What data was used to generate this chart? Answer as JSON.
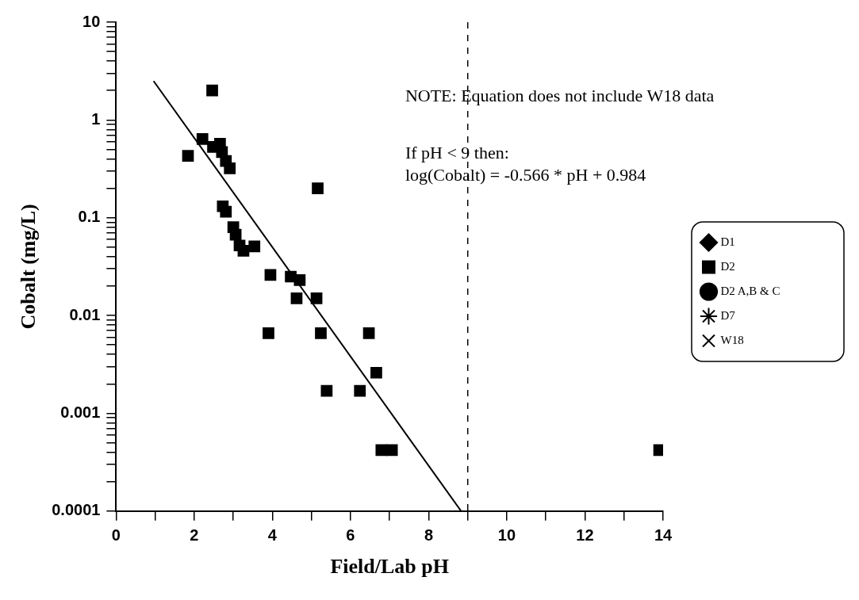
{
  "chart_data": {
    "type": "scatter",
    "xlabel": "Field/Lab pH",
    "ylabel": "Cobalt (mg/L)",
    "log": "y",
    "grid": false,
    "legend": "right",
    "xlim": [
      0,
      14
    ],
    "xticks": [
      0,
      {
        "value": 1,
        "label": null
      },
      2,
      {
        "value": 3,
        "label": null
      },
      4,
      {
        "value": 5,
        "label": null
      },
      6,
      {
        "value": 7,
        "label": null
      },
      8,
      {
        "value": 9,
        "label": null
      },
      10,
      {
        "value": 11,
        "label": null
      },
      12,
      {
        "value": 13,
        "label": null
      },
      14
    ],
    "ylim": [
      0.0001,
      10
    ],
    "yticks": [
      0.0001,
      {
        "value": 0.0002,
        "label": null
      },
      {
        "value": 0.0003,
        "label": null
      },
      {
        "value": 0.0004,
        "label": null
      },
      {
        "value": 0.0005,
        "label": null
      },
      {
        "value": 0.0006,
        "label": null
      },
      {
        "value": 0.0007,
        "label": null
      },
      {
        "value": 0.0008,
        "label": null
      },
      {
        "value": 0.0009,
        "label": null
      },
      0.001,
      {
        "value": 0.002,
        "label": null
      },
      {
        "value": 0.003,
        "label": null
      },
      {
        "value": 0.004,
        "label": null
      },
      {
        "value": 0.005,
        "label": null
      },
      {
        "value": 0.006,
        "label": null
      },
      {
        "value": 0.007,
        "label": null
      },
      {
        "value": 0.008,
        "label": null
      },
      {
        "value": 0.009,
        "label": null
      },
      0.01,
      {
        "value": 0.02,
        "label": null
      },
      {
        "value": 0.03,
        "label": null
      },
      {
        "value": 0.04,
        "label": null
      },
      {
        "value": 0.05,
        "label": null
      },
      {
        "value": 0.06,
        "label": null
      },
      {
        "value": 0.07,
        "label": null
      },
      {
        "value": 0.08,
        "label": null
      },
      {
        "value": 0.09,
        "label": null
      },
      0.1,
      {
        "value": 0.2,
        "label": null
      },
      {
        "value": 0.3,
        "label": null
      },
      {
        "value": 0.4,
        "label": null
      },
      {
        "value": 0.5,
        "label": null
      },
      {
        "value": 0.6,
        "label": null
      },
      {
        "value": 0.7,
        "label": null
      },
      {
        "value": 0.8,
        "label": null
      },
      {
        "value": 0.9,
        "label": null
      },
      1,
      {
        "value": 2,
        "label": null
      },
      {
        "value": 3,
        "label": null
      },
      {
        "value": 4,
        "label": null
      },
      {
        "value": 5,
        "label": null
      },
      {
        "value": 6,
        "label": null
      },
      {
        "value": 7,
        "label": null
      },
      {
        "value": 8,
        "label": null
      },
      {
        "value": 9,
        "label": null
      },
      10
    ],
    "series": [
      {
        "name": "D1",
        "color": "#000000",
        "marker": "diamond"
      },
      {
        "name": "D2",
        "color": "#000000",
        "marker": "square",
        "x": [
          2.46,
          1.84,
          2.21,
          2.48,
          2.66,
          2.71,
          2.81,
          2.91,
          5.16,
          2.73,
          2.81,
          3.0,
          3.06,
          3.16,
          3.26,
          3.54,
          3.95,
          4.47,
          4.7,
          4.62,
          5.13,
          3.9,
          5.24,
          6.47,
          6.66,
          5.39,
          6.24,
          6.79,
          7.06,
          13.9
        ],
        "values": [
          2.0,
          0.43,
          0.64,
          0.53,
          0.57,
          0.47,
          0.38,
          0.32,
          0.2,
          0.131,
          0.115,
          0.08,
          0.067,
          0.052,
          0.046,
          0.051,
          0.026,
          0.025,
          0.023,
          0.015,
          0.015,
          0.0066,
          0.0066,
          0.0066,
          0.0026,
          0.0017,
          0.0017,
          0.00042,
          0.00042,
          0.00042
        ]
      },
      {
        "name": "D2 A,B & C",
        "color": "#000000",
        "marker": "circle"
      },
      {
        "name": "D7",
        "color": "#000000",
        "marker": "star"
      },
      {
        "name": "W18",
        "color": "#000000",
        "marker": "cross"
      },
      {
        "type": "line",
        "color": "#000000",
        "marker": "none",
        "line_style": "solid",
        "x": [
          0.96,
          8.83
        ],
        "values": [
          2.5,
          0.0001
        ]
      }
    ],
    "ref_lines": [
      {
        "axis": "x",
        "value": 9,
        "color": "#000000",
        "line_style": "dashed"
      }
    ],
    "annotations": [
      "NOTE: Equation does not include W18 data",
      "If pH < 9 then:",
      "log(Cobalt) = -0.566 * pH + 0.984"
    ]
  }
}
